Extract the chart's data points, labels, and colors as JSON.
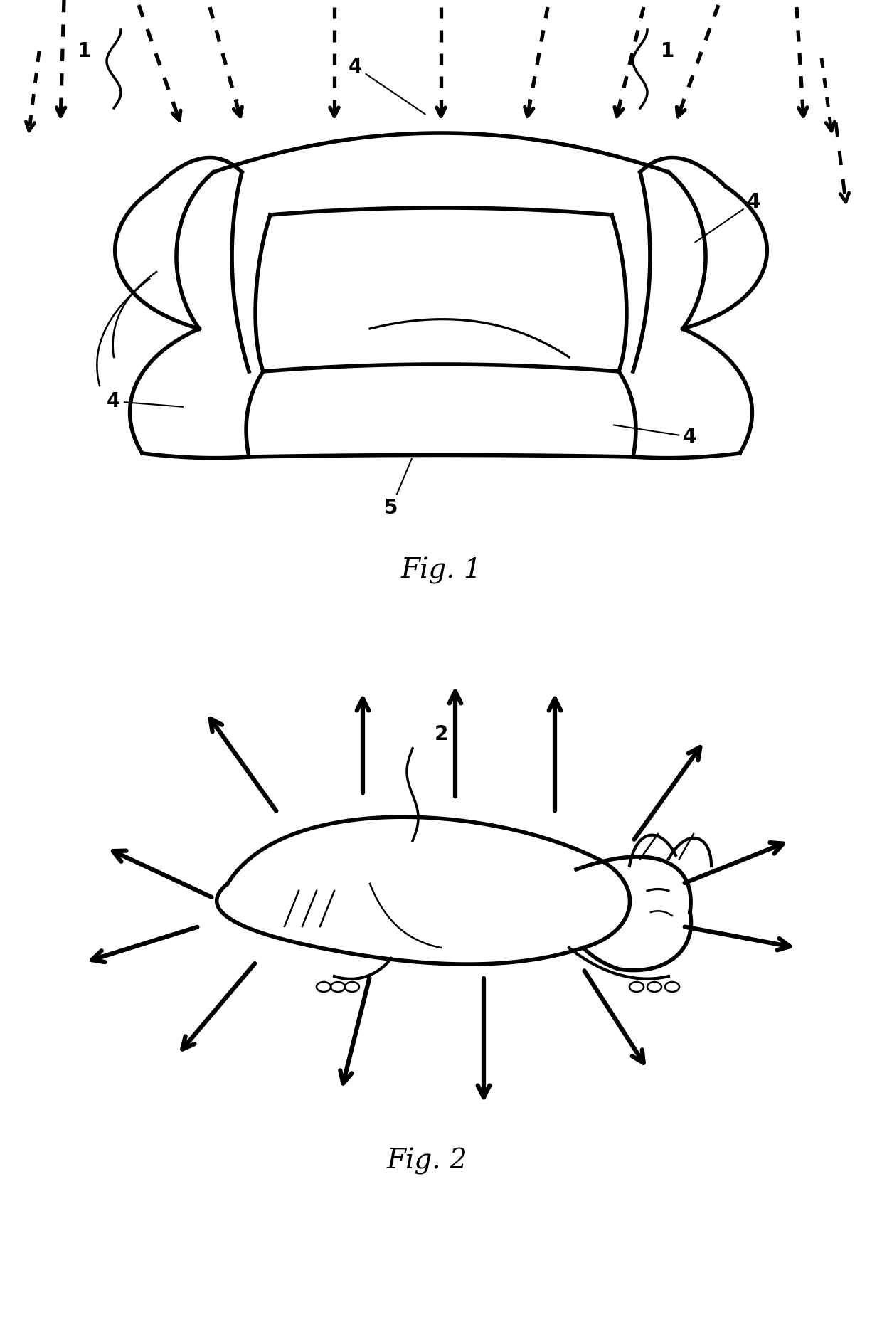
{
  "fig_width": 12.4,
  "fig_height": 18.72,
  "bg_color": "#ffffff",
  "label_fontsize": 20,
  "title_fontsize": 28,
  "fig1_title": "Fig. 1",
  "fig2_title": "Fig. 2"
}
